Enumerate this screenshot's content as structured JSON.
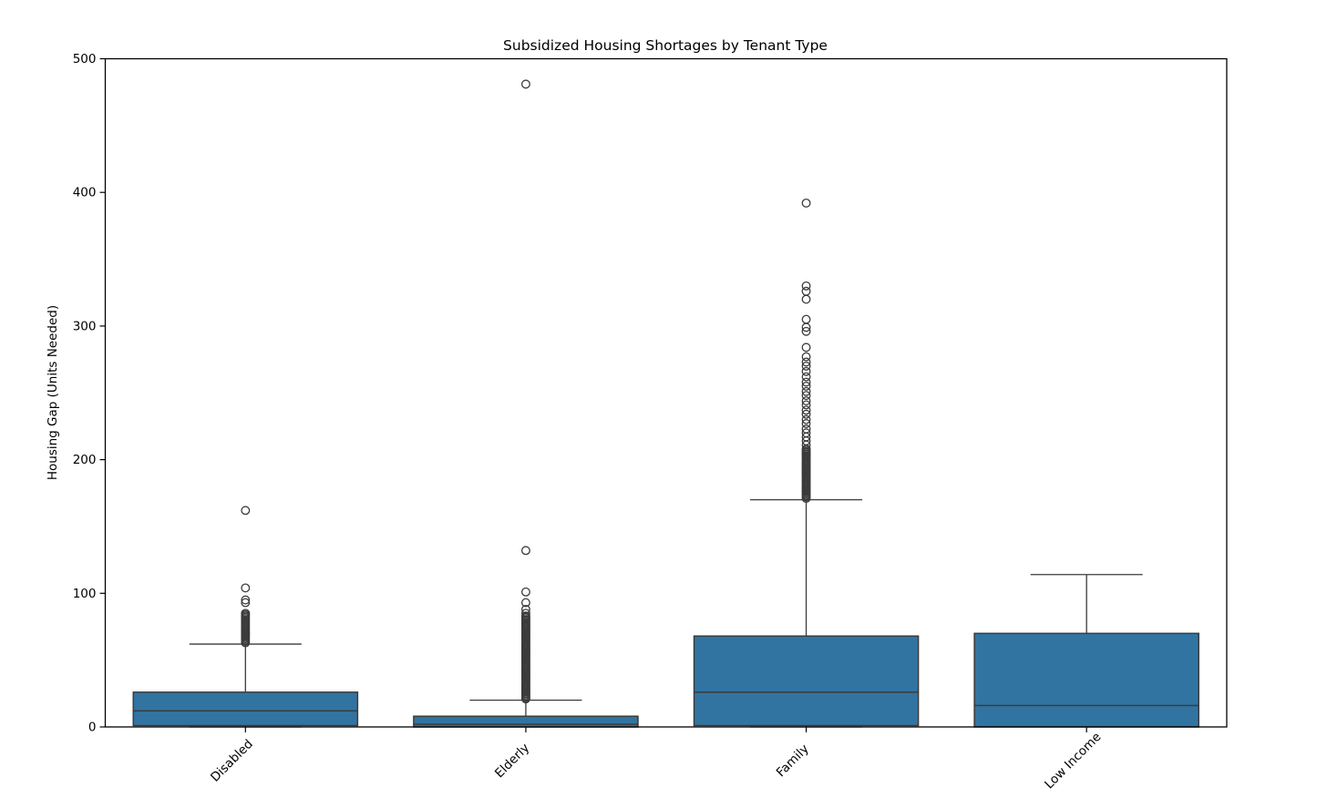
{
  "chart_data": {
    "type": "box",
    "title": "Subsidized Housing Shortages by Tenant Type",
    "xlabel": "",
    "ylabel": "Housing Gap (Units Needed)",
    "ylim": [
      0,
      500
    ],
    "yticks": [
      0,
      100,
      200,
      300,
      400,
      500
    ],
    "grid": false,
    "legend": "none",
    "categories": [
      "Disabled",
      "Elderly",
      "Family",
      "Low Income"
    ],
    "colors": {
      "box_fill": "#3274a1",
      "box_edge": "#3b3b3b",
      "whisker": "#3b3b3b",
      "median": "#3b3b3b",
      "outlier_edge": "#3b3b3b",
      "axis": "#000000",
      "background": "#ffffff"
    },
    "boxes": [
      {
        "label": "Disabled",
        "whisker_low": 0,
        "q1": 1,
        "median": 12,
        "q3": 26,
        "whisker_high": 62,
        "outliers": [
          63,
          64,
          65,
          66,
          67,
          68,
          69,
          70,
          71,
          72,
          73,
          74,
          75,
          76,
          77,
          78,
          79,
          80,
          81,
          82,
          83,
          84,
          85,
          93,
          95,
          104,
          162
        ]
      },
      {
        "label": "Elderly",
        "whisker_low": 0,
        "q1": 0,
        "median": 2,
        "q3": 8,
        "whisker_high": 20,
        "outliers": [
          21,
          22,
          23,
          24,
          25,
          26,
          27,
          28,
          29,
          30,
          31,
          32,
          33,
          34,
          35,
          36,
          37,
          38,
          39,
          40,
          41,
          42,
          43,
          44,
          45,
          46,
          47,
          48,
          49,
          50,
          51,
          52,
          53,
          54,
          55,
          56,
          57,
          58,
          59,
          60,
          61,
          62,
          63,
          64,
          65,
          66,
          67,
          68,
          69,
          70,
          71,
          72,
          73,
          74,
          75,
          76,
          77,
          78,
          79,
          80,
          81,
          82,
          83,
          85,
          88,
          93,
          101,
          132,
          481
        ]
      },
      {
        "label": "Family",
        "whisker_low": 0,
        "q1": 1,
        "median": 26,
        "q3": 68,
        "whisker_high": 170,
        "outliers": [
          171,
          172,
          173,
          174,
          175,
          176,
          177,
          178,
          179,
          180,
          181,
          182,
          183,
          184,
          185,
          186,
          187,
          188,
          189,
          190,
          191,
          192,
          193,
          194,
          195,
          196,
          197,
          198,
          199,
          200,
          201,
          202,
          203,
          204,
          205,
          206,
          207,
          208,
          211,
          214,
          217,
          220,
          223,
          227,
          230,
          234,
          237,
          241,
          244,
          248,
          251,
          255,
          258,
          262,
          266,
          270,
          273,
          277,
          284,
          296,
          299,
          305,
          320,
          326,
          330,
          392
        ]
      },
      {
        "label": "Low Income",
        "whisker_low": 0,
        "q1": 0,
        "median": 16,
        "q3": 70,
        "whisker_high": 114,
        "outliers": []
      }
    ]
  }
}
